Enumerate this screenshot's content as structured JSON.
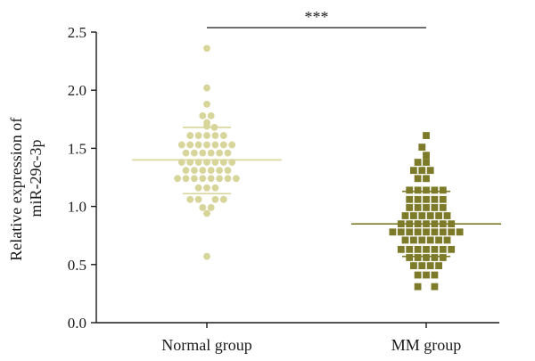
{
  "chart_data": {
    "type": "scatter",
    "subtype": "dot-plot",
    "ylabel_line1": "Relative expression of",
    "ylabel_line2": "miR-29c-3p",
    "ylim": [
      0,
      2.5
    ],
    "yticks": [
      "0.0",
      "0.5",
      "1.0",
      "1.5",
      "2.0",
      "2.5"
    ],
    "categories": [
      "Normal group",
      "MM group"
    ],
    "significance": "***",
    "grid": false,
    "legend": "none",
    "series": [
      {
        "category": "Normal group",
        "marker": "circle",
        "color": "#d7d59a",
        "mean": 1.4,
        "sd_upper": 1.68,
        "sd_lower": 1.11,
        "points": [
          {
            "x": 0,
            "y": 2.36
          },
          {
            "x": 0,
            "y": 2.02
          },
          {
            "x": 0,
            "y": 1.88
          },
          {
            "x": -0.5,
            "y": 1.78
          },
          {
            "x": 0.5,
            "y": 1.78
          },
          {
            "x": 0,
            "y": 1.72
          },
          {
            "x": 0,
            "y": 1.69
          },
          {
            "x": 0.9,
            "y": 1.68
          },
          {
            "x": -2,
            "y": 1.61
          },
          {
            "x": -1,
            "y": 1.61
          },
          {
            "x": 0,
            "y": 1.61
          },
          {
            "x": 1,
            "y": 1.61
          },
          {
            "x": 2,
            "y": 1.61
          },
          {
            "x": -3,
            "y": 1.53
          },
          {
            "x": -2,
            "y": 1.53
          },
          {
            "x": -1,
            "y": 1.53
          },
          {
            "x": 0,
            "y": 1.53
          },
          {
            "x": 1,
            "y": 1.53
          },
          {
            "x": 2,
            "y": 1.53
          },
          {
            "x": 3,
            "y": 1.53
          },
          {
            "x": -2.5,
            "y": 1.46
          },
          {
            "x": -1.5,
            "y": 1.46
          },
          {
            "x": -0.5,
            "y": 1.46
          },
          {
            "x": 0.5,
            "y": 1.46
          },
          {
            "x": 1.5,
            "y": 1.46
          },
          {
            "x": 2.5,
            "y": 1.46
          },
          {
            "x": -3,
            "y": 1.38
          },
          {
            "x": -2,
            "y": 1.38
          },
          {
            "x": -1,
            "y": 1.38
          },
          {
            "x": 0,
            "y": 1.38
          },
          {
            "x": 1,
            "y": 1.38
          },
          {
            "x": 2,
            "y": 1.38
          },
          {
            "x": 3,
            "y": 1.38
          },
          {
            "x": -2.5,
            "y": 1.31
          },
          {
            "x": -1.5,
            "y": 1.31
          },
          {
            "x": -0.5,
            "y": 1.31
          },
          {
            "x": 0.5,
            "y": 1.31
          },
          {
            "x": 1.5,
            "y": 1.31
          },
          {
            "x": 2.5,
            "y": 1.31
          },
          {
            "x": -3.5,
            "y": 1.24
          },
          {
            "x": -2.5,
            "y": 1.24
          },
          {
            "x": -1.5,
            "y": 1.24
          },
          {
            "x": -0.5,
            "y": 1.24
          },
          {
            "x": 0.5,
            "y": 1.24
          },
          {
            "x": 1.5,
            "y": 1.24
          },
          {
            "x": 2.5,
            "y": 1.24
          },
          {
            "x": 3.5,
            "y": 1.24
          },
          {
            "x": -1,
            "y": 1.16
          },
          {
            "x": 0,
            "y": 1.16
          },
          {
            "x": 1,
            "y": 1.16
          },
          {
            "x": -2,
            "y": 1.06
          },
          {
            "x": -1,
            "y": 1.06
          },
          {
            "x": 1,
            "y": 1.06
          },
          {
            "x": 2,
            "y": 1.06
          },
          {
            "x": -0.5,
            "y": 0.99
          },
          {
            "x": 0.5,
            "y": 0.99
          },
          {
            "x": 0,
            "y": 0.94
          },
          {
            "x": 0,
            "y": 0.57
          }
        ]
      },
      {
        "category": "MM group",
        "marker": "square",
        "color": "#7d7a2a",
        "mean": 0.85,
        "sd_upper": 1.13,
        "sd_lower": 0.57,
        "points": [
          {
            "x": 0,
            "y": 1.61
          },
          {
            "x": -0.5,
            "y": 1.51
          },
          {
            "x": 0,
            "y": 1.44
          },
          {
            "x": -1,
            "y": 1.38
          },
          {
            "x": 0,
            "y": 1.38
          },
          {
            "x": -1.5,
            "y": 1.31
          },
          {
            "x": -0.5,
            "y": 1.31
          },
          {
            "x": 0.5,
            "y": 1.31
          },
          {
            "x": -1,
            "y": 1.24
          },
          {
            "x": 0,
            "y": 1.24
          },
          {
            "x": -2,
            "y": 1.14
          },
          {
            "x": -1,
            "y": 1.14
          },
          {
            "x": 0,
            "y": 1.14
          },
          {
            "x": 1,
            "y": 1.14
          },
          {
            "x": 2,
            "y": 1.14
          },
          {
            "x": -2,
            "y": 1.06
          },
          {
            "x": -1,
            "y": 1.06
          },
          {
            "x": 0,
            "y": 1.06
          },
          {
            "x": 1,
            "y": 1.06
          },
          {
            "x": 2,
            "y": 1.06
          },
          {
            "x": -2,
            "y": 0.99
          },
          {
            "x": -1,
            "y": 0.99
          },
          {
            "x": 0,
            "y": 0.99
          },
          {
            "x": 1,
            "y": 0.99
          },
          {
            "x": 2,
            "y": 0.99
          },
          {
            "x": -2.5,
            "y": 0.92
          },
          {
            "x": -1.5,
            "y": 0.92
          },
          {
            "x": -0.5,
            "y": 0.92
          },
          {
            "x": 0.5,
            "y": 0.92
          },
          {
            "x": 1.5,
            "y": 0.92
          },
          {
            "x": 2.5,
            "y": 0.92
          },
          {
            "x": -3,
            "y": 0.85
          },
          {
            "x": -2,
            "y": 0.85
          },
          {
            "x": -1,
            "y": 0.85
          },
          {
            "x": 0,
            "y": 0.85
          },
          {
            "x": 1,
            "y": 0.85
          },
          {
            "x": 2,
            "y": 0.85
          },
          {
            "x": 3,
            "y": 0.85
          },
          {
            "x": -4,
            "y": 0.78
          },
          {
            "x": -3,
            "y": 0.78
          },
          {
            "x": -2,
            "y": 0.78
          },
          {
            "x": -1,
            "y": 0.78
          },
          {
            "x": 0,
            "y": 0.78
          },
          {
            "x": 1,
            "y": 0.78
          },
          {
            "x": 2,
            "y": 0.78
          },
          {
            "x": 3,
            "y": 0.78
          },
          {
            "x": 4,
            "y": 0.78
          },
          {
            "x": -2.5,
            "y": 0.71
          },
          {
            "x": -1.5,
            "y": 0.71
          },
          {
            "x": -0.5,
            "y": 0.71
          },
          {
            "x": 0.5,
            "y": 0.71
          },
          {
            "x": 1.5,
            "y": 0.71
          },
          {
            "x": 2.5,
            "y": 0.71
          },
          {
            "x": -3,
            "y": 0.63
          },
          {
            "x": -2,
            "y": 0.63
          },
          {
            "x": -1,
            "y": 0.63
          },
          {
            "x": 0,
            "y": 0.63
          },
          {
            "x": 1,
            "y": 0.63
          },
          {
            "x": 2,
            "y": 0.63
          },
          {
            "x": 3,
            "y": 0.63
          },
          {
            "x": -2,
            "y": 0.56
          },
          {
            "x": -1,
            "y": 0.56
          },
          {
            "x": 0,
            "y": 0.56
          },
          {
            "x": 1,
            "y": 0.56
          },
          {
            "x": 2,
            "y": 0.56
          },
          {
            "x": -1.5,
            "y": 0.49
          },
          {
            "x": -0.5,
            "y": 0.49
          },
          {
            "x": 0.5,
            "y": 0.49
          },
          {
            "x": 1.5,
            "y": 0.49
          },
          {
            "x": -1,
            "y": 0.41
          },
          {
            "x": 0,
            "y": 0.41
          },
          {
            "x": 1,
            "y": 0.41
          },
          {
            "x": -1,
            "y": 0.31
          },
          {
            "x": 1,
            "y": 0.31
          }
        ]
      }
    ]
  }
}
